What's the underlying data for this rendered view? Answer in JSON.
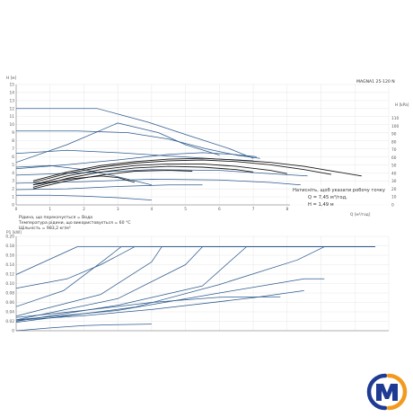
{
  "product_label": "MAGNA1 25-120 N",
  "chart_data": [
    {
      "type": "line",
      "title": "",
      "ylabel": "H [м]",
      "xlabel": "Q [м³/год]",
      "xlim": [
        0,
        11
      ],
      "ylim": [
        0,
        15
      ],
      "xticks": [
        0,
        1,
        2,
        3,
        4,
        5,
        6,
        7,
        8,
        9
      ],
      "yticks": [
        0,
        1,
        2,
        3,
        4,
        5,
        6,
        7,
        8,
        9,
        10,
        11,
        12,
        13,
        14,
        15
      ],
      "y2label": "H [kPa]",
      "y2ticks": [
        0,
        10,
        20,
        30,
        40,
        50,
        60,
        70,
        80,
        90,
        100,
        110
      ],
      "grid": true,
      "annotations": [
        "Рідина, що перекачується = Вода",
        "Температура рідини, що використовується = 60 °C",
        "Щільність = 983,2 кг/м³"
      ],
      "tooltip": {
        "line1": "Натисніть, щоб указати робочу точку",
        "line2": "Q = 7,45 м³/год,",
        "line3": "H = 1,49 м"
      },
      "series": [
        {
          "style": "blue",
          "x": [
            0,
            2.4,
            3.9,
            5.2,
            6.3,
            7.0
          ],
          "y": [
            12,
            12,
            10.3,
            8.5,
            7,
            5.8
          ]
        },
        {
          "style": "blue",
          "x": [
            0,
            1.8,
            3.3,
            4.5,
            5.6,
            6.5,
            7.2
          ],
          "y": [
            9.2,
            9.2,
            9.0,
            8.2,
            7.0,
            6.2,
            5.8
          ]
        },
        {
          "style": "blue",
          "x": [
            0,
            1.5,
            3.0,
            4.2,
            5.0,
            6.0
          ],
          "y": [
            5.3,
            7.5,
            10.2,
            9.0,
            7.5,
            6.2
          ]
        },
        {
          "style": "blue",
          "x": [
            0,
            1.5,
            3.0,
            4.5,
            5.5,
            6.4,
            7.1
          ],
          "y": [
            4.5,
            5.0,
            5.6,
            6.3,
            6.5,
            6.3,
            6.0
          ]
        },
        {
          "style": "blue",
          "x": [
            0,
            2.0,
            4.0,
            6.0,
            7.5,
            8.6
          ],
          "y": [
            3.7,
            4.0,
            4.4,
            4.3,
            3.9,
            3.6
          ]
        },
        {
          "style": "blue",
          "x": [
            0,
            2.0,
            4.0,
            6.0,
            7.5,
            8.4
          ],
          "y": [
            2.7,
            2.9,
            3.2,
            3.1,
            2.8,
            2.5
          ]
        },
        {
          "style": "blue",
          "x": [
            0,
            1.5,
            3.0,
            4.5,
            5.5
          ],
          "y": [
            1.9,
            2.0,
            2.3,
            2.5,
            2.5
          ]
        },
        {
          "style": "blue",
          "x": [
            0,
            1.0,
            2.0,
            3.0,
            4.0
          ],
          "y": [
            1.2,
            1.2,
            1.1,
            0.9,
            0.6
          ]
        },
        {
          "style": "blue",
          "x": [
            0,
            1.0,
            2.0,
            3.0,
            4.0
          ],
          "y": [
            4.7,
            4.9,
            4.4,
            3.5,
            2.5
          ]
        },
        {
          "style": "blue",
          "x": [
            0,
            1.5,
            3.0,
            4.5,
            6.0,
            7.0
          ],
          "y": [
            6.4,
            6.8,
            6.5,
            6.1,
            5.7,
            5.5
          ]
        },
        {
          "style": "black",
          "x": [
            0.5,
            1.5,
            2.5,
            3.5,
            4.5,
            5.5,
            6.5,
            7.5,
            8.5,
            9.5,
            10.2
          ],
          "y": [
            3.0,
            4.1,
            4.9,
            5.4,
            5.7,
            5.8,
            5.6,
            5.3,
            4.8,
            4.1,
            3.6
          ]
        },
        {
          "style": "black",
          "x": [
            0.5,
            1.5,
            2.5,
            3.5,
            4.5,
            5.5,
            6.5,
            7.5,
            8.5,
            9.3
          ],
          "y": [
            2.8,
            3.9,
            4.7,
            5.2,
            5.5,
            5.6,
            5.4,
            5.0,
            4.4,
            3.8
          ]
        },
        {
          "style": "black",
          "x": [
            0.5,
            1.5,
            2.5,
            3.5,
            4.5,
            5.5,
            6.5,
            7.5,
            8.0
          ],
          "y": [
            2.5,
            3.6,
            4.4,
            4.9,
            5.1,
            5.1,
            4.8,
            4.3,
            3.9
          ]
        },
        {
          "style": "black",
          "x": [
            0.5,
            1.5,
            2.5,
            3.5,
            4.5,
            5.5,
            6.5,
            7.0
          ],
          "y": [
            2.2,
            3.3,
            4.1,
            4.6,
            4.8,
            4.7,
            4.4,
            4.1
          ]
        },
        {
          "style": "black",
          "x": [
            0.5,
            1.5,
            2.5,
            3.0,
            3.5
          ],
          "y": [
            2.5,
            3.2,
            3.6,
            3.4,
            2.8
          ]
        },
        {
          "style": "black",
          "x": [
            0.5,
            1.5,
            2.5,
            3.5,
            4.5,
            5.2
          ],
          "y": [
            2.0,
            3.0,
            3.7,
            4.2,
            4.3,
            4.2
          ]
        }
      ]
    },
    {
      "type": "line",
      "title": "",
      "ylabel": "P1 [kW]",
      "xlim": [
        0,
        11
      ],
      "ylim": [
        0,
        0.2
      ],
      "yticks": [
        0,
        0.02,
        0.04,
        0.06,
        0.08,
        0.1,
        0.12,
        0.14,
        0.16,
        0.18,
        0.2
      ],
      "ytick_labels": [
        "0",
        "0.02",
        "0.04",
        "0.06",
        "0.08",
        "0.10",
        "0.12",
        "0.14",
        "0.16",
        "0.18",
        "0.20"
      ],
      "grid": true,
      "series": [
        {
          "style": "blue",
          "x": [
            0,
            1.8,
            2.0,
            10.6
          ],
          "y": [
            0.119,
            0.178,
            0.178,
            0.178
          ]
        },
        {
          "style": "blue",
          "x": [
            0,
            1.4,
            2.6,
            3.1,
            10.6
          ],
          "y": [
            0.051,
            0.085,
            0.15,
            0.178,
            0.178
          ]
        },
        {
          "style": "blue",
          "x": [
            0,
            2.5,
            4.0,
            4.3,
            10.6
          ],
          "y": [
            0.031,
            0.077,
            0.146,
            0.178,
            0.178
          ]
        },
        {
          "style": "blue",
          "x": [
            0,
            3.0,
            5.0,
            5.5,
            10.6
          ],
          "y": [
            0.023,
            0.068,
            0.14,
            0.178,
            0.178
          ]
        },
        {
          "style": "blue",
          "x": [
            0,
            3.0,
            5.5,
            6.8,
            10.6
          ],
          "y": [
            0.02,
            0.054,
            0.095,
            0.178,
            0.178
          ]
        },
        {
          "style": "blue",
          "x": [
            0,
            3.5,
            6.0,
            8.3,
            9.1,
            10.6
          ],
          "y": [
            0.018,
            0.05,
            0.098,
            0.15,
            0.178,
            0.178
          ]
        },
        {
          "style": "blue",
          "x": [
            0,
            3.0,
            6.0,
            8.5,
            9.1
          ],
          "y": [
            0.023,
            0.043,
            0.08,
            0.11,
            0.11
          ]
        },
        {
          "style": "blue",
          "x": [
            0,
            2.0,
            4.0,
            6.0,
            7.8
          ],
          "y": [
            0.028,
            0.043,
            0.06,
            0.071,
            0.072
          ]
        },
        {
          "style": "blue",
          "x": [
            0,
            1.0,
            2.0,
            3.0,
            4.0
          ],
          "y": [
            0.0,
            0.006,
            0.011,
            0.013,
            0.014
          ]
        },
        {
          "style": "blue",
          "x": [
            0,
            2.0,
            4.0,
            7.0,
            8.5
          ],
          "y": [
            0.022,
            0.032,
            0.045,
            0.07,
            0.085
          ]
        },
        {
          "style": "blue",
          "x": [
            0,
            1.5,
            2.5,
            3.5
          ],
          "y": [
            0.09,
            0.11,
            0.14,
            0.178
          ]
        }
      ]
    }
  ]
}
